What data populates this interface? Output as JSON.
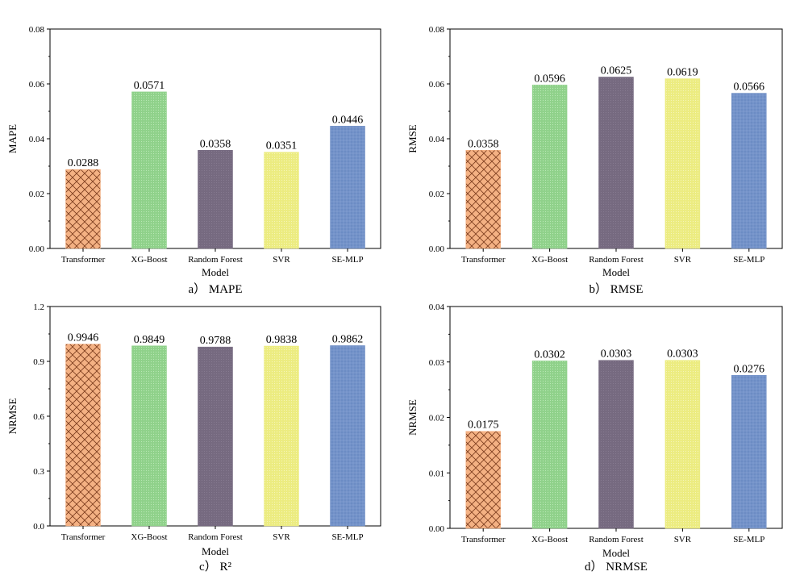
{
  "chart_data": [
    {
      "type": "bar",
      "id": "a",
      "title": "MAPE",
      "caption_prefix": "a）",
      "caption_text": "MAPE",
      "xlabel": "Model",
      "ylabel": "MAPE",
      "categories": [
        "Transformer",
        "XG-Boost",
        "Random Forest",
        "SVR",
        "SE-MLP"
      ],
      "values": [
        0.0288,
        0.0571,
        0.0358,
        0.0351,
        0.0446
      ],
      "value_labels": [
        "0.0288",
        "0.0571",
        "0.0358",
        "0.0351",
        "0.0446"
      ],
      "ylim": [
        0,
        0.08
      ],
      "yticks": [
        0,
        0.02,
        0.04,
        0.06,
        0.08
      ],
      "ytick_labels": [
        "0.00",
        "0.02",
        "0.04",
        "0.06",
        "0.08"
      ]
    },
    {
      "type": "bar",
      "id": "b",
      "title": "RMSE",
      "caption_prefix": "b）",
      "caption_text": "RMSE",
      "xlabel": "Model",
      "ylabel": "RMSE",
      "categories": [
        "Transformer",
        "XG-Boost",
        "Random Forest",
        "SVR",
        "SE-MLP"
      ],
      "values": [
        0.0358,
        0.0596,
        0.0625,
        0.0619,
        0.0566
      ],
      "value_labels": [
        "0.0358",
        "0.0596",
        "0.0625",
        "0.0619",
        "0.0566"
      ],
      "ylim": [
        0,
        0.08
      ],
      "yticks": [
        0,
        0.02,
        0.04,
        0.06,
        0.08
      ],
      "ytick_labels": [
        "0.00",
        "0.02",
        "0.04",
        "0.06",
        "0.08"
      ]
    },
    {
      "type": "bar",
      "id": "c",
      "title": "R²",
      "caption_prefix": "c）",
      "caption_text": "R²",
      "xlabel": "Model",
      "ylabel": "NRMSE",
      "categories": [
        "Transformer",
        "XG-Boost",
        "Random Forest",
        "SVR",
        "SE-MLP"
      ],
      "values": [
        0.9946,
        0.9849,
        0.9788,
        0.9838,
        0.9862
      ],
      "value_labels": [
        "0.9946",
        "0.9849",
        "0.9788",
        "0.9838",
        "0.9862"
      ],
      "ylim": [
        0,
        1.2
      ],
      "yticks": [
        0,
        0.3,
        0.6,
        0.9,
        1.2
      ],
      "ytick_labels": [
        "0.0",
        "0.3",
        "0.6",
        "0.9",
        "1.2"
      ]
    },
    {
      "type": "bar",
      "id": "d",
      "title": "NRMSE",
      "caption_prefix": "d）",
      "caption_text": "NRMSE",
      "xlabel": "Model",
      "ylabel": "NRMSE",
      "categories": [
        "Transformer",
        "XG-Boost",
        "Random Forest",
        "SVR",
        "SE-MLP"
      ],
      "values": [
        0.0175,
        0.0302,
        0.0303,
        0.0303,
        0.0276
      ],
      "value_labels": [
        "0.0175",
        "0.0302",
        "0.0303",
        "0.0303",
        "0.0276"
      ],
      "ylim": [
        0,
        0.04
      ],
      "yticks": [
        0,
        0.01,
        0.02,
        0.03,
        0.04
      ],
      "ytick_labels": [
        "0.00",
        "0.01",
        "0.02",
        "0.03",
        "0.04"
      ]
    }
  ],
  "bar_colors": [
    "#f4b183",
    "#8fd18a",
    "#766a80",
    "#ecec80",
    "#6c8cc4"
  ],
  "bar_pattern_colors": [
    "#7a3b1c",
    "#b8e8b4",
    "#8b8096",
    "#f6f6b8",
    "#8ea8d8"
  ]
}
